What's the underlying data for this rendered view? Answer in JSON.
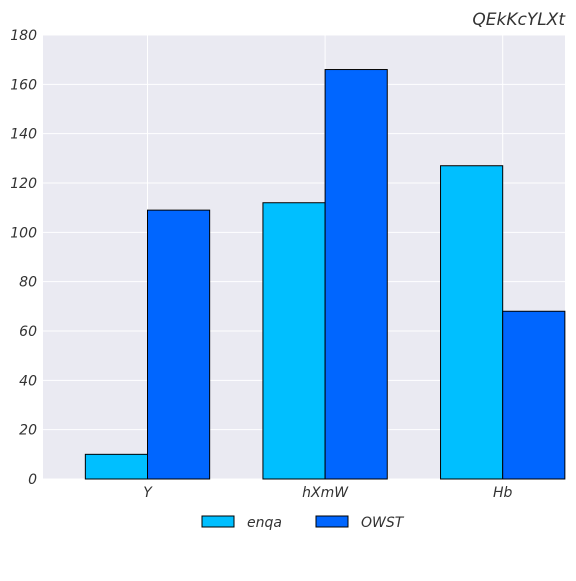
{
  "chart_data": {
    "type": "bar",
    "title": "QEkKcYLXt",
    "xlabel": "",
    "ylabel": "",
    "categories": [
      "Y",
      "hXmW",
      "Hb"
    ],
    "series": [
      {
        "name": "enqa",
        "values": [
          10,
          112,
          127
        ],
        "color": "#00bfff"
      },
      {
        "name": "OWST",
        "values": [
          109,
          166,
          68
        ],
        "color": "#0066ff"
      }
    ],
    "ylim": [
      0,
      180
    ],
    "yticks": [
      0,
      20,
      40,
      60,
      80,
      100,
      120,
      140,
      160,
      180
    ],
    "grid": true,
    "legend_position": "bottom-center",
    "background_color": "#eaeaf2"
  }
}
